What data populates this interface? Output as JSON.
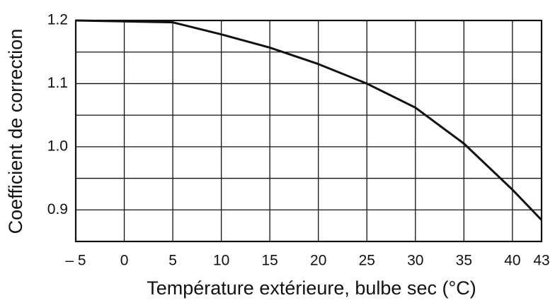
{
  "chart_data": {
    "type": "line",
    "xlabel": "Température extérieure, bulbe sec (°C)",
    "ylabel": "Coefficient de correction",
    "x": [
      -5,
      5,
      10,
      15,
      20,
      25,
      30,
      35,
      40,
      43
    ],
    "series": [
      {
        "name": "Coefficient",
        "color": "#111111",
        "values": [
          1.2,
          1.197,
          1.178,
          1.157,
          1.131,
          1.1,
          1.062,
          1.005,
          0.932,
          0.884
        ]
      }
    ],
    "xlim": [
      -5,
      43
    ],
    "ylim": [
      0.85,
      1.2
    ],
    "xticks": [
      {
        "value": -5,
        "label": "– 5"
      },
      0,
      5,
      10,
      15,
      20,
      25,
      30,
      35,
      40,
      43
    ],
    "yticks": [
      0.9,
      {
        "value": 1,
        "label": "1.0"
      },
      1.1,
      1.2
    ],
    "yminor_grid": [
      0.95,
      1.05,
      1.15
    ],
    "grid": true
  }
}
